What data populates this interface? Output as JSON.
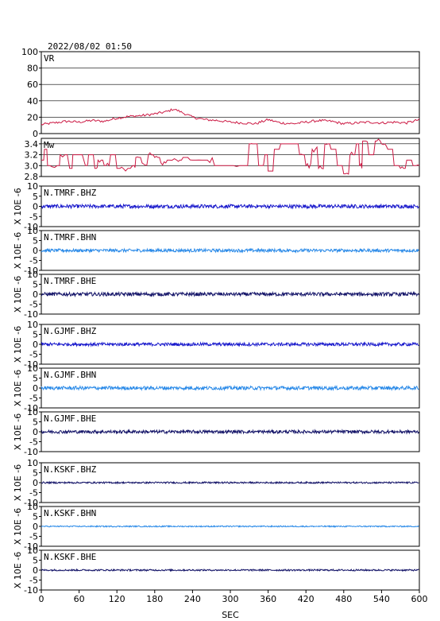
{
  "header": {
    "datetime": "2022/08/02 01:50"
  },
  "chart_data": {
    "type": "line",
    "xlabel": "SEC",
    "xlim": [
      0,
      600
    ],
    "xticks": [
      "0",
      "60",
      "120",
      "180",
      "240",
      "300",
      "360",
      "420",
      "480",
      "540",
      "600"
    ],
    "panels": [
      {
        "id": "vr",
        "label": "VR",
        "ylim": [
          0,
          100
        ],
        "yticks": [
          "0",
          "20",
          "40",
          "60",
          "80",
          "100"
        ],
        "grid": true,
        "color": "#cc1a44",
        "series_kind": "variance_reduction",
        "x": [
          0,
          20,
          40,
          60,
          80,
          100,
          120,
          140,
          160,
          180,
          200,
          210,
          220,
          240,
          260,
          280,
          300,
          320,
          340,
          360,
          380,
          400,
          420,
          440,
          460,
          480,
          500,
          520,
          540,
          560,
          580,
          600
        ],
        "values": [
          11,
          13,
          15,
          14,
          16,
          15,
          19,
          21,
          22,
          24,
          27,
          30,
          27,
          20,
          17,
          16,
          14,
          13,
          12,
          17,
          13,
          12,
          14,
          16,
          15,
          12,
          13,
          14,
          13,
          14,
          13,
          17
        ]
      },
      {
        "id": "mw",
        "label": "Mw",
        "ylim": [
          2.8,
          3.5
        ],
        "yticks": [
          "2.8",
          "3.0",
          "3.2",
          "3.4"
        ],
        "grid": true,
        "color": "#cc1a44",
        "series_kind": "magnitude",
        "x": [
          0,
          5,
          10,
          25,
          30,
          45,
          50,
          70,
          75,
          85,
          90,
          100,
          110,
          120,
          130,
          145,
          150,
          160,
          170,
          180,
          190,
          200,
          215,
          225,
          240,
          260,
          275,
          300,
          320,
          330,
          335,
          345,
          355,
          360,
          370,
          380,
          400,
          410,
          420,
          430,
          440,
          450,
          460,
          470,
          480,
          490,
          500,
          505,
          510,
          520,
          530,
          540,
          550,
          560,
          570,
          580,
          590,
          600
        ],
        "values": [
          3.1,
          3.3,
          3.0,
          3.0,
          3.2,
          2.95,
          3.2,
          3.0,
          3.2,
          2.95,
          3.1,
          3.0,
          3.2,
          2.95,
          2.95,
          3.0,
          3.15,
          3.05,
          3.2,
          3.15,
          3.05,
          3.1,
          3.1,
          3.15,
          3.1,
          3.1,
          3.0,
          3.0,
          3.0,
          3.4,
          3.4,
          3.0,
          3.2,
          2.9,
          3.3,
          3.4,
          3.4,
          3.2,
          3.0,
          3.3,
          2.95,
          3.4,
          3.3,
          3.0,
          2.85,
          3.2,
          3.4,
          3.0,
          3.45,
          3.2,
          3.45,
          3.4,
          3.3,
          3.0,
          2.95,
          3.1,
          3.0,
          3.0
        ]
      },
      {
        "id": "tmrf-bhz",
        "label": "N.TMRF.BHZ",
        "ylim": [
          -10,
          10
        ],
        "yticks": [
          "-10",
          "-5",
          "0",
          "5",
          "10"
        ],
        "ylabel": "X 10E -6",
        "color": "#1a1acc",
        "amplitude": 0.9
      },
      {
        "id": "tmrf-bhn",
        "label": "N.TMRF.BHN",
        "ylim": [
          -10,
          10
        ],
        "yticks": [
          "-10",
          "-5",
          "0",
          "5",
          "10"
        ],
        "ylabel": "X 10E -6",
        "color": "#2a8ae8",
        "amplitude": 0.8
      },
      {
        "id": "tmrf-bhe",
        "label": "N.TMRF.BHE",
        "ylim": [
          -10,
          10
        ],
        "yticks": [
          "-10",
          "-5",
          "0",
          "5",
          "10"
        ],
        "ylabel": "X 10E -6",
        "color": "#141468",
        "amplitude": 0.9
      },
      {
        "id": "gjmf-bhz",
        "label": "N.GJMF.BHZ",
        "ylim": [
          -10,
          10
        ],
        "yticks": [
          "-10",
          "-5",
          "0",
          "5",
          "10"
        ],
        "ylabel": "X 10E -6",
        "color": "#1a1acc",
        "amplitude": 0.8
      },
      {
        "id": "gjmf-bhn",
        "label": "N.GJMF.BHN",
        "ylim": [
          -10,
          10
        ],
        "yticks": [
          "-10",
          "-5",
          "0",
          "5",
          "10"
        ],
        "ylabel": "X 10E -6",
        "color": "#2a8ae8",
        "amplitude": 0.9
      },
      {
        "id": "gjmf-bhe",
        "label": "N.GJMF.BHE",
        "ylim": [
          -10,
          10
        ],
        "yticks": [
          "-10",
          "-5",
          "0",
          "5",
          "10"
        ],
        "ylabel": "X 10E -6",
        "color": "#141468",
        "amplitude": 0.8
      },
      {
        "id": "kskf-bhz",
        "label": "N.KSKF.BHZ",
        "ylim": [
          -10,
          10
        ],
        "yticks": [
          "-10",
          "-5",
          "0",
          "5",
          "10"
        ],
        "ylabel": "X 10E -6",
        "color": "#141468",
        "amplitude": 0.4
      },
      {
        "id": "kskf-bhn",
        "label": "N.KSKF.BHN",
        "ylim": [
          -10,
          10
        ],
        "yticks": [
          "-10",
          "-5",
          "0",
          "5",
          "10"
        ],
        "ylabel": "X 10E -6",
        "color": "#2a8ae8",
        "amplitude": 0.3
      },
      {
        "id": "kskf-bhe",
        "label": "N.KSKF.BHE",
        "ylim": [
          -10,
          10
        ],
        "yticks": [
          "-10",
          "-5",
          "0",
          "5",
          "10"
        ],
        "ylabel": "X 10E -6",
        "color": "#141468",
        "amplitude": 0.4
      }
    ]
  }
}
